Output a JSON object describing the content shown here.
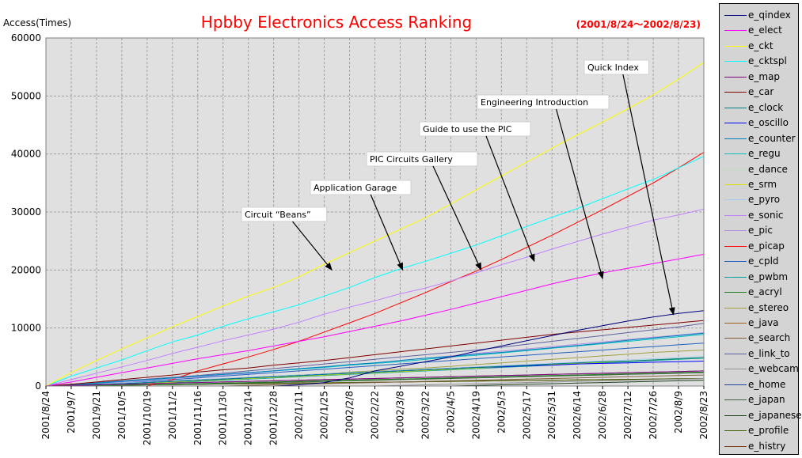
{
  "chart_data": {
    "type": "line",
    "title": "Hpbby Electronics Access Ranking",
    "date_range": "(2001/8/24～2002/8/23)",
    "ylabel": "Access(Times)",
    "xlabel": "",
    "ylim": [
      0,
      60000
    ],
    "yticks": [
      0,
      10000,
      20000,
      30000,
      40000,
      50000,
      60000
    ],
    "grid": true,
    "legend_position": "right",
    "x_tick_labels": [
      "2001/8/24",
      "2001/9/7",
      "2001/9/21",
      "2001/10/5",
      "2001/10/19",
      "2001/11/2",
      "2001/11/16",
      "2001/11/30",
      "2001/12/14",
      "2001/12/28",
      "2002/1/11",
      "2002/1/25",
      "2002/2/8",
      "2002/2/22",
      "2002/3/8",
      "2002/3/22",
      "2002/4/5",
      "2002/4/19",
      "2002/5/3",
      "2002/5/17",
      "2002/5/31",
      "2002/6/14",
      "2002/6/28",
      "2002/7/12",
      "2002/7/26",
      "2002/8/9",
      "2002/8/23"
    ],
    "series": [
      {
        "name": "e_qindex",
        "color": "#000080",
        "values": [
          0,
          0,
          0,
          0,
          0,
          0,
          0,
          0,
          0,
          0,
          200,
          600,
          1400,
          2600,
          3400,
          4200,
          5000,
          6000,
          6900,
          7800,
          8700,
          9600,
          10400,
          11200,
          11900,
          12500,
          13000
        ]
      },
      {
        "name": "e_elect",
        "color": "#ff00ff",
        "values": [
          0,
          700,
          1500,
          2300,
          3100,
          3900,
          4700,
          5400,
          6100,
          6900,
          7700,
          8500,
          9400,
          10300,
          11200,
          12200,
          13200,
          14300,
          15400,
          16500,
          17600,
          18600,
          19500,
          20300,
          21100,
          21900,
          22700
        ]
      },
      {
        "name": "e_ckt",
        "color": "#ffff00",
        "values": [
          0,
          2300,
          4400,
          6400,
          8300,
          10200,
          12000,
          13800,
          15500,
          17000,
          18800,
          21000,
          23000,
          25000,
          27000,
          29000,
          31400,
          33800,
          36200,
          38600,
          41000,
          43300,
          45500,
          47800,
          50200,
          52900,
          55800
        ]
      },
      {
        "name": "e_cktspl",
        "color": "#00ffff",
        "values": [
          0,
          1700,
          3100,
          4500,
          6100,
          7600,
          8800,
          10300,
          11600,
          12800,
          14000,
          15500,
          17000,
          18700,
          20200,
          21500,
          22900,
          24300,
          25900,
          27500,
          29100,
          30600,
          32300,
          34000,
          35600,
          37600,
          39600
        ]
      },
      {
        "name": "e_map",
        "color": "#800080",
        "values": [
          0,
          100,
          200,
          300,
          400,
          500,
          600,
          700,
          800,
          900,
          1000,
          1100,
          1200,
          1300,
          1400,
          1500,
          1600,
          1700,
          1800,
          1900,
          2000,
          2100,
          2200,
          2300,
          2400,
          2500,
          2600
        ]
      },
      {
        "name": "e_car",
        "color": "#800000",
        "values": [
          0,
          300,
          700,
          1100,
          1500,
          1900,
          2400,
          2800,
          3100,
          3600,
          4000,
          4400,
          4900,
          5400,
          5900,
          6400,
          6900,
          7400,
          7900,
          8400,
          8900,
          9300,
          9700,
          10100,
          10500,
          10900,
          11300
        ]
      },
      {
        "name": "e_clock",
        "color": "#008080",
        "values": [
          0,
          100,
          300,
          400,
          600,
          800,
          1000,
          1200,
          1400,
          1600,
          1800,
          2000,
          2200,
          2400,
          2600,
          2800,
          3000,
          3200,
          3400,
          3600,
          3800,
          4000,
          4200,
          4300,
          4500,
          4700,
          4900
        ]
      },
      {
        "name": "e_oscillo",
        "color": "#0000ff",
        "values": [
          0,
          100,
          200,
          400,
          600,
          800,
          1000,
          1200,
          1400,
          1600,
          1800,
          2000,
          2200,
          2400,
          2600,
          2800,
          3000,
          3200,
          3300,
          3500,
          3600,
          3800,
          3900,
          4000,
          4100,
          4200,
          4300
        ]
      },
      {
        "name": "e_counter",
        "color": "#0080c0",
        "values": [
          0,
          200,
          500,
          800,
          1100,
          1400,
          1700,
          2000,
          2300,
          2600,
          3000,
          3300,
          3700,
          4000,
          4400,
          4800,
          5100,
          5500,
          5800,
          6200,
          6600,
          7000,
          7400,
          7900,
          8300,
          8700,
          9100
        ]
      },
      {
        "name": "e_regu",
        "color": "#00c0c0",
        "values": [
          0,
          200,
          500,
          800,
          1100,
          1400,
          1700,
          2000,
          2300,
          2600,
          2900,
          3200,
          3600,
          3900,
          4200,
          4600,
          5000,
          5300,
          5700,
          6100,
          6500,
          6900,
          7300,
          7700,
          8100,
          8500,
          8900
        ]
      },
      {
        "name": "e_dance",
        "color": "#c0dcc0",
        "values": [
          0,
          100,
          200,
          300,
          400,
          500,
          600,
          700,
          800,
          900,
          1000,
          1100,
          1200,
          1300,
          1400,
          1500,
          1600,
          1700,
          1800,
          1900,
          2000,
          2100,
          2200,
          2300,
          2400,
          2500,
          2600
        ]
      },
      {
        "name": "e_srm",
        "color": "#e0e000",
        "values": [
          0,
          100,
          200,
          300,
          500,
          700,
          900,
          1100,
          1300,
          1500,
          1700,
          1900,
          2100,
          2300,
          2500,
          2700,
          2900,
          3100,
          3300,
          3500,
          3700,
          3900,
          4100,
          4300,
          4500,
          4700,
          4900
        ]
      },
      {
        "name": "e_pyro",
        "color": "#a6caf0",
        "values": [
          0,
          100,
          300,
          500,
          700,
          900,
          1100,
          1300,
          1500,
          1700,
          1900,
          2100,
          2300,
          2500,
          2700,
          2900,
          3100,
          3300,
          3500,
          3700,
          3900,
          4100,
          4300,
          4500,
          4700,
          4900,
          5100
        ]
      },
      {
        "name": "e_sonic",
        "color": "#c080ff",
        "values": [
          0,
          1100,
          2200,
          3300,
          4400,
          5600,
          6700,
          7800,
          8800,
          9800,
          11000,
          12400,
          13600,
          14700,
          15900,
          16900,
          18100,
          19500,
          20900,
          22200,
          23600,
          24900,
          26200,
          27400,
          28600,
          29500,
          30500
        ]
      },
      {
        "name": "e_pic",
        "color": "#b090e0",
        "values": [
          0,
          200,
          400,
          700,
          1000,
          1300,
          1600,
          1900,
          2200,
          2600,
          2900,
          3300,
          3600,
          4000,
          4400,
          4800,
          5200,
          5600,
          6000,
          6400,
          6800,
          7200,
          7600,
          8000,
          8400,
          8800,
          9200
        ]
      },
      {
        "name": "e_picap",
        "color": "#ff0000",
        "values": [
          0,
          0,
          0,
          0,
          0,
          1100,
          2600,
          3800,
          5000,
          6300,
          7700,
          9300,
          10900,
          12500,
          14300,
          16100,
          18000,
          19800,
          21800,
          23900,
          26000,
          28200,
          30400,
          32700,
          35000,
          37600,
          40300
        ]
      },
      {
        "name": "e_cpld",
        "color": "#2060c0",
        "values": [
          0,
          100,
          300,
          500,
          800,
          1100,
          1400,
          1700,
          2000,
          2300,
          2600,
          2900,
          3200,
          3500,
          3800,
          4100,
          4400,
          4700,
          5000,
          5300,
          5600,
          5900,
          6200,
          6500,
          6800,
          7100,
          7400
        ]
      },
      {
        "name": "e_pwbm",
        "color": "#00a0a0",
        "values": [
          0,
          100,
          200,
          300,
          400,
          600,
          800,
          1000,
          1200,
          1400,
          1600,
          1800,
          2000,
          2200,
          2400,
          2600,
          2800,
          3000,
          3200,
          3400,
          3600,
          3800,
          4000,
          4200,
          4400,
          4600,
          4800
        ]
      },
      {
        "name": "e_acryl",
        "color": "#208020",
        "values": [
          0,
          50,
          100,
          150,
          200,
          300,
          400,
          500,
          600,
          700,
          800,
          900,
          1000,
          1100,
          1200,
          1300,
          1400,
          1500,
          1600,
          1700,
          1800,
          1900,
          2000,
          2100,
          2200,
          2300,
          2400
        ]
      },
      {
        "name": "e_stereo",
        "color": "#a0a040",
        "values": [
          0,
          100,
          300,
          500,
          700,
          900,
          1100,
          1300,
          1500,
          1700,
          1900,
          2100,
          2400,
          2600,
          2900,
          3100,
          3400,
          3700,
          4000,
          4300,
          4600,
          4900,
          5200,
          5500,
          5800,
          6000,
          6200
        ]
      },
      {
        "name": "e_java",
        "color": "#a06020",
        "values": [
          0,
          100,
          200,
          300,
          400,
          500,
          600,
          700,
          800,
          900,
          1000,
          1100,
          1200,
          1300,
          1400,
          1500,
          1600,
          1700,
          1800,
          1900,
          2000,
          2100,
          2200,
          2300,
          2400,
          2500,
          2600
        ]
      },
      {
        "name": "e_search",
        "color": "#806040",
        "values": [
          0,
          0,
          0,
          0,
          0,
          0,
          0,
          0,
          100,
          200,
          300,
          400,
          500,
          600,
          700,
          800,
          900,
          1000,
          1100,
          1200,
          1300,
          1400,
          1500,
          1600,
          1700,
          1800,
          1900
        ]
      },
      {
        "name": "e_link_to",
        "color": "#6060a0",
        "values": [
          0,
          300,
          600,
          900,
          1200,
          1500,
          1800,
          2200,
          2600,
          3000,
          3400,
          3800,
          4200,
          4600,
          5000,
          5400,
          5800,
          6200,
          6700,
          7200,
          7700,
          8200,
          8700,
          9200,
          9700,
          10200,
          10800
        ]
      },
      {
        "name": "e_webcam",
        "color": "#909090",
        "values": [
          0,
          0,
          0,
          0,
          0,
          0,
          0,
          0,
          0,
          0,
          0,
          0,
          0,
          0,
          100,
          200,
          300,
          400,
          500,
          600,
          700,
          800,
          900,
          1000,
          1100,
          1200,
          1300
        ]
      },
      {
        "name": "e_home",
        "color": "#2040a0",
        "values": [
          0,
          100,
          200,
          300,
          400,
          500,
          600,
          700,
          800,
          900,
          1000,
          1100,
          1200,
          1300,
          1400,
          1500,
          1600,
          1700,
          1800,
          1900,
          2000,
          2100,
          2200,
          2300,
          2400,
          2500,
          2600
        ]
      },
      {
        "name": "e_japan",
        "color": "#406040",
        "values": [
          0,
          50,
          100,
          150,
          200,
          250,
          300,
          400,
          500,
          600,
          700,
          800,
          900,
          1000,
          1100,
          1200,
          1300,
          1400,
          1500,
          1600,
          1700,
          1800,
          1900,
          2000,
          2100,
          2200,
          2300
        ]
      },
      {
        "name": "e_japanese",
        "color": "#204020",
        "values": [
          0,
          0,
          0,
          0,
          0,
          0,
          0,
          0,
          0,
          0,
          0,
          0,
          0,
          0,
          0,
          0,
          0,
          100,
          200,
          300,
          400,
          500,
          600,
          700,
          800,
          900,
          1000
        ]
      },
      {
        "name": "e_profile",
        "color": "#406000",
        "values": [
          0,
          50,
          100,
          150,
          200,
          250,
          300,
          350,
          400,
          450,
          500,
          550,
          600,
          650,
          700,
          750,
          800,
          850,
          900,
          950,
          1000,
          1050,
          1100,
          1150,
          1200,
          1250,
          1300
        ]
      },
      {
        "name": "e_histry",
        "color": "#804020",
        "values": [
          0,
          50,
          100,
          150,
          200,
          250,
          300,
          350,
          400,
          450,
          500,
          550,
          600,
          650,
          700,
          750,
          800,
          850,
          900,
          950,
          1000,
          1050,
          1100,
          1150,
          1200,
          1250,
          1300
        ]
      }
    ],
    "annotations": [
      {
        "text": "Circuit “Beans”",
        "target": {
          "x_index": 11.3,
          "y": 20000
        }
      },
      {
        "text": "Application Garage",
        "target": {
          "x_index": 14.1,
          "y": 20000
        }
      },
      {
        "text": "PIC Circuits Gallery",
        "target": {
          "x_index": 17.2,
          "y": 20000
        }
      },
      {
        "text": "Guide to use the PIC",
        "target": {
          "x_index": 19.3,
          "y": 21500
        }
      },
      {
        "text": "Engineering Introduction",
        "target": {
          "x_index": 22.0,
          "y": 18500
        }
      },
      {
        "text": "Quick Index",
        "target": {
          "x_index": 24.8,
          "y": 12300
        }
      }
    ]
  }
}
